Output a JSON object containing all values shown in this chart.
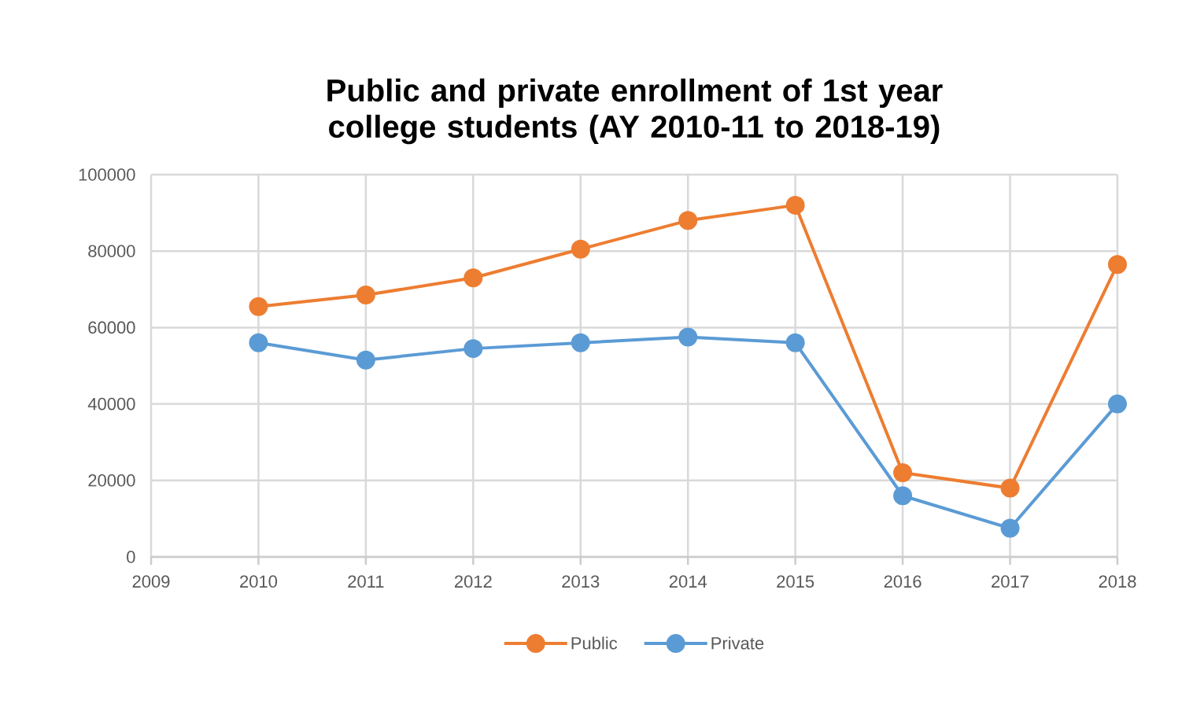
{
  "chart_data": {
    "type": "line",
    "title": "Public and private enrollment of 1st year college students (AY 2010-11 to 2018-19)",
    "x": [
      2010,
      2011,
      2012,
      2013,
      2014,
      2015,
      2016,
      2017,
      2018
    ],
    "series": [
      {
        "name": "Public",
        "color": "#ed7d31",
        "values": [
          65500,
          68500,
          73000,
          80500,
          88000,
          92000,
          22000,
          18000,
          76500
        ]
      },
      {
        "name": "Private",
        "color": "#5b9bd5",
        "values": [
          56000,
          51500,
          54500,
          56000,
          57500,
          56000,
          16000,
          7500,
          40000
        ]
      }
    ],
    "xlim": [
      2009,
      2018
    ],
    "xticks": [
      2009,
      2010,
      2011,
      2012,
      2013,
      2014,
      2015,
      2016,
      2017,
      2018
    ],
    "ylim": [
      0,
      100000
    ],
    "yticks": [
      0,
      20000,
      40000,
      60000,
      80000,
      100000
    ],
    "grid": true,
    "legend": "bottom",
    "marker": "circle",
    "line_style": "solid"
  }
}
